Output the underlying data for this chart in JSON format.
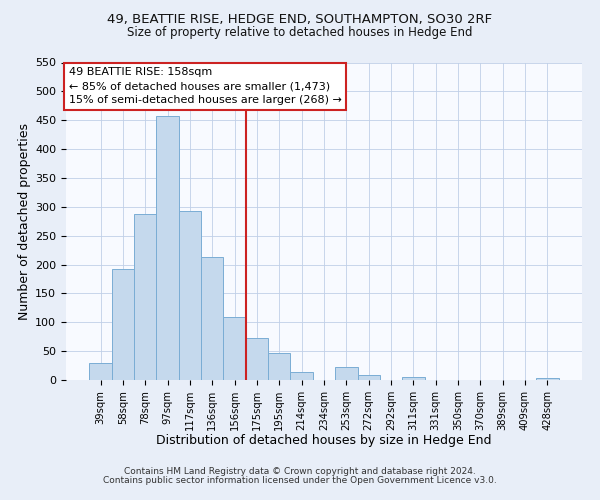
{
  "title_line1": "49, BEATTIE RISE, HEDGE END, SOUTHAMPTON, SO30 2RF",
  "title_line2": "Size of property relative to detached houses in Hedge End",
  "xlabel": "Distribution of detached houses by size in Hedge End",
  "ylabel": "Number of detached properties",
  "bar_color": "#c5d9ed",
  "bar_edge_color": "#7aadd4",
  "categories": [
    "39sqm",
    "58sqm",
    "78sqm",
    "97sqm",
    "117sqm",
    "136sqm",
    "156sqm",
    "175sqm",
    "195sqm",
    "214sqm",
    "234sqm",
    "253sqm",
    "272sqm",
    "292sqm",
    "311sqm",
    "331sqm",
    "350sqm",
    "370sqm",
    "389sqm",
    "409sqm",
    "428sqm"
  ],
  "values": [
    30,
    192,
    287,
    458,
    292,
    213,
    110,
    73,
    47,
    13,
    0,
    22,
    9,
    0,
    5,
    0,
    0,
    0,
    0,
    0,
    4
  ],
  "ylim": [
    0,
    550
  ],
  "yticks": [
    0,
    50,
    100,
    150,
    200,
    250,
    300,
    350,
    400,
    450,
    500,
    550
  ],
  "annotation_title": "49 BEATTIE RISE: 158sqm",
  "annotation_line1": "← 85% of detached houses are smaller (1,473)",
  "annotation_line2": "15% of semi-detached houses are larger (268) →",
  "vline_index": 6.5,
  "footer_line1": "Contains HM Land Registry data © Crown copyright and database right 2024.",
  "footer_line2": "Contains public sector information licensed under the Open Government Licence v3.0.",
  "background_color": "#e8eef8",
  "plot_bg_color": "#f8faff"
}
